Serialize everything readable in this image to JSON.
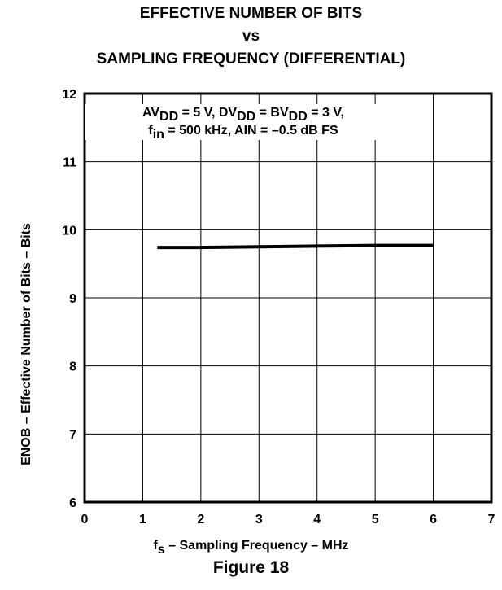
{
  "chart_data": {
    "type": "line",
    "title": "EFFECTIVE NUMBER OF BITS",
    "title_line2": "vs",
    "title_line3": "SAMPLING FREQUENCY (DIFFERENTIAL)",
    "xlabel": "fₛ – Sampling Frequency – MHz",
    "ylabel": "ENOB – Effective Number of Bits – Bits",
    "xlim": [
      0,
      7
    ],
    "ylim": [
      6,
      12
    ],
    "xticks": [
      "0",
      "1",
      "2",
      "3",
      "4",
      "5",
      "6",
      "7"
    ],
    "yticks": [
      "6",
      "7",
      "8",
      "9",
      "10",
      "11",
      "12"
    ],
    "grid": true,
    "annotation_line1": "AVDD = 5 V, DVDD = BVDD = 3 V,",
    "annotation_line2": "fin = 500 kHz, AIN = –0.5 dB FS",
    "series": [
      {
        "x": [
          1.25,
          2,
          3,
          4,
          5,
          6
        ],
        "y": [
          9.74,
          9.74,
          9.75,
          9.76,
          9.77,
          9.77
        ],
        "color": "#000000"
      }
    ],
    "figure_label": "Figure 18"
  }
}
